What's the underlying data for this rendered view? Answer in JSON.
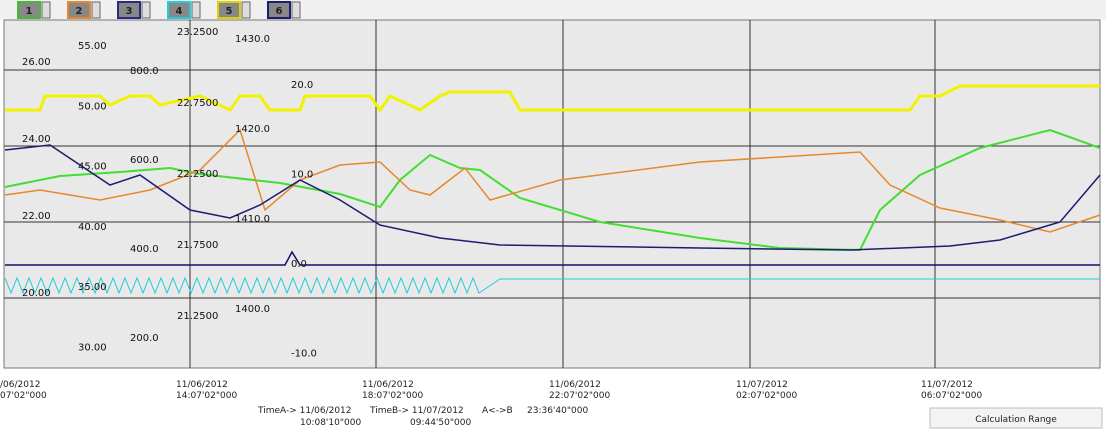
{
  "toolbar": {
    "buttons": [
      "1",
      "2",
      "3",
      "4",
      "5",
      "6"
    ]
  },
  "axis_labels": {
    "scale1": [
      "55.00",
      "50.00",
      "45.00",
      "40.00",
      "35.00",
      "30.00"
    ],
    "scale2": [
      "26.00",
      "24.00",
      "22.00",
      "20.00"
    ],
    "scale3": [
      "800.0",
      "600.0",
      "400.0",
      "200.0"
    ],
    "scale4": [
      "23.2500",
      "22.7500",
      "22.2500",
      "21.7500",
      "21.2500"
    ],
    "scale5": [
      "1430.0",
      "1420.0",
      "1410.0",
      "1400.0"
    ],
    "scale6": [
      "20.0",
      "10.0",
      "0.0",
      "-10.0"
    ]
  },
  "time_axis": [
    [
      "/06/2012",
      "07'02\"000"
    ],
    [
      "11/06/2012",
      "14:07'02\"000"
    ],
    [
      "11/06/2012",
      "18:07'02\"000"
    ],
    [
      "11/06/2012",
      "22:07'02\"000"
    ],
    [
      "11/07/2012",
      "02:07'02\"000"
    ],
    [
      "11/07/2012",
      "06:07'02\"000"
    ]
  ],
  "status": {
    "time_a": "TimeA-> 11/06/2012",
    "time_a_clock": "10:08'10\"000",
    "time_b": "TimeB-> 11/07/2012",
    "time_b_clock": "09:44'50\"000",
    "ab": "A<->B",
    "ab_value": "23:36'40\"000",
    "calc": "Calculation Range"
  }
}
